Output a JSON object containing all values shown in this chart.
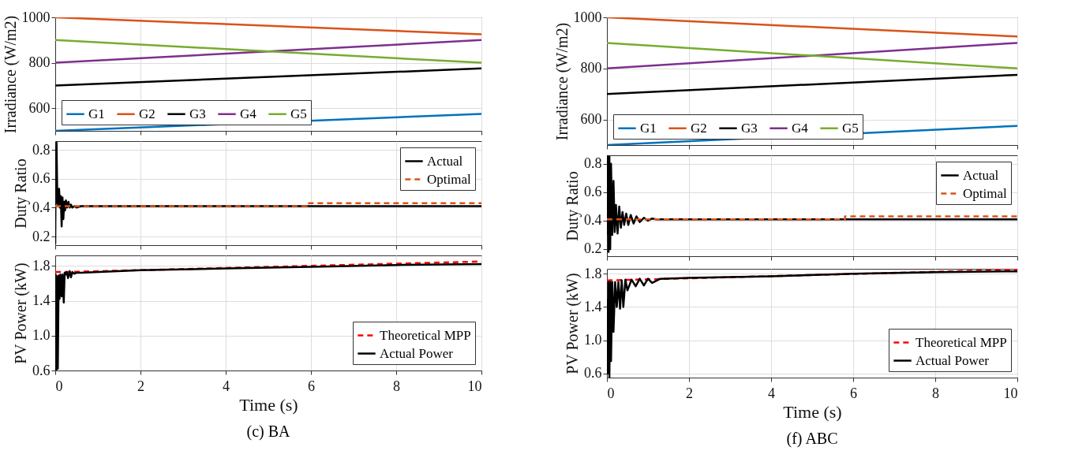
{
  "chart_data": [
    {
      "type": "line",
      "ylabel": "Irradiance (W/m2)",
      "xlim": [
        0,
        10
      ],
      "xticks": [
        0,
        2,
        4,
        6,
        8,
        10
      ],
      "ylim": [
        500,
        1000
      ],
      "yticks": [
        600,
        800,
        1000
      ],
      "grid": true,
      "tick_labels": "y",
      "legend": "bottom left",
      "line_style": "solid",
      "series": [
        {
          "name": "G1",
          "color": "#0072bd",
          "x": [
            0,
            10
          ],
          "values": [
            500,
            575
          ]
        },
        {
          "name": "G2",
          "color": "#d95319",
          "x": [
            0,
            10
          ],
          "values": [
            1000,
            925
          ]
        },
        {
          "name": "G3",
          "color": "#000000",
          "x": [
            0,
            10
          ],
          "values": [
            700,
            775
          ]
        },
        {
          "name": "G4",
          "color": "#7e2f8e",
          "x": [
            0,
            10
          ],
          "values": [
            800,
            900
          ]
        },
        {
          "name": "G5",
          "color": "#77ac30",
          "x": [
            0,
            10
          ],
          "values": [
            900,
            800
          ]
        }
      ]
    },
    {
      "type": "line",
      "ylabel": "Duty Ratio",
      "xlim": [
        0,
        10
      ],
      "xticks": [
        0,
        2,
        4,
        6,
        8,
        10
      ],
      "ylim": [
        0.14,
        0.86
      ],
      "yticks": [
        0.2,
        0.4,
        0.6,
        0.8
      ],
      "grid": true,
      "tick_labels": "y",
      "legend": "top right",
      "series": [
        {
          "name": "Actual",
          "color": "#000000",
          "line_style": "solid",
          "x": [
            0,
            0.01,
            0.03,
            0.05,
            0.07,
            0.09,
            0.11,
            0.13,
            0.15,
            0.17,
            0.19,
            0.21,
            0.23,
            0.25,
            0.28,
            0.31,
            0.34,
            0.37,
            0.4,
            0.45,
            0.5,
            0.6,
            10
          ],
          "values": [
            0.15,
            0.7,
            0.85,
            0.43,
            0.42,
            0.53,
            0.4,
            0.48,
            0.27,
            0.47,
            0.32,
            0.44,
            0.38,
            0.45,
            0.4,
            0.44,
            0.4,
            0.42,
            0.4,
            0.41,
            0.4,
            0.41,
            0.41
          ]
        },
        {
          "name": "Optimal",
          "color": "#d95319",
          "line_style": "dashed",
          "x": [
            0,
            5.9,
            5.9,
            10
          ],
          "values": [
            0.41,
            0.41,
            0.43,
            0.43
          ]
        }
      ]
    },
    {
      "type": "line",
      "ylabel": "PV Power (kW)",
      "xlabel": "Time (s)",
      "xlim": [
        0,
        10
      ],
      "xticks": [
        0,
        2,
        4,
        6,
        8,
        10
      ],
      "ylim": [
        0.6,
        1.92
      ],
      "yticks": [
        0.6,
        {
          "value": 1,
          "label": "1.0"
        },
        1.4,
        1.8
      ],
      "grid": true,
      "legend": "bottom right",
      "annotations": [
        "(c) BA"
      ],
      "series": [
        {
          "name": "Theoretical MPP",
          "color": "#ff0000",
          "line_style": "dashed",
          "x": [
            0,
            0.3,
            10
          ],
          "values": [
            1.73,
            1.73,
            1.85
          ]
        },
        {
          "name": "Actual Power",
          "color": "#000000",
          "line_style": "solid",
          "x": [
            0,
            0.01,
            0.02,
            0.04,
            0.06,
            0.08,
            0.1,
            0.12,
            0.15,
            0.17,
            0.2,
            0.22,
            0.24,
            0.27,
            0.3,
            0.34,
            0.37,
            0.4,
            0.44,
            0.5,
            0.6,
            2,
            4,
            6,
            8,
            10
          ],
          "values": [
            1.5,
            1.7,
            0.6,
            1.68,
            0.62,
            1.69,
            1.42,
            1.7,
            1.45,
            1.7,
            1.38,
            1.72,
            1.7,
            1.73,
            1.66,
            1.74,
            1.67,
            1.73,
            1.71,
            1.72,
            1.72,
            1.75,
            1.77,
            1.79,
            1.81,
            1.82
          ]
        }
      ]
    },
    {
      "type": "line",
      "ylabel": "Irradiance (W/m2)",
      "xlim": [
        0,
        10
      ],
      "xticks": [
        0,
        2,
        4,
        6,
        8,
        10
      ],
      "ylim": [
        500,
        1000
      ],
      "yticks": [
        600,
        800,
        1000
      ],
      "grid": true,
      "tick_labels": "y",
      "legend": "bottom left",
      "line_style": "solid",
      "series": [
        {
          "name": "G1",
          "color": "#0072bd",
          "x": [
            0,
            10
          ],
          "values": [
            500,
            575
          ]
        },
        {
          "name": "G2",
          "color": "#d95319",
          "x": [
            0,
            10
          ],
          "values": [
            1000,
            925
          ]
        },
        {
          "name": "G3",
          "color": "#000000",
          "x": [
            0,
            10
          ],
          "values": [
            700,
            775
          ]
        },
        {
          "name": "G4",
          "color": "#7e2f8e",
          "x": [
            0,
            10
          ],
          "values": [
            800,
            900
          ]
        },
        {
          "name": "G5",
          "color": "#77ac30",
          "x": [
            0,
            10
          ],
          "values": [
            900,
            800
          ]
        }
      ]
    },
    {
      "type": "line",
      "ylabel": "Duty Ratio",
      "xlim": [
        0,
        10
      ],
      "xticks": [
        0,
        2,
        4,
        6,
        8,
        10
      ],
      "ylim": [
        0.15,
        0.86
      ],
      "yticks": [
        0.2,
        0.4,
        0.6,
        0.8
      ],
      "grid": true,
      "tick_labels": "y",
      "legend": "top right",
      "series": [
        {
          "name": "Actual",
          "color": "#000000",
          "line_style": "solid",
          "x": [
            0,
            0.02,
            0.04,
            0.06,
            0.08,
            0.1,
            0.13,
            0.16,
            0.19,
            0.22,
            0.26,
            0.3,
            0.34,
            0.38,
            0.42,
            0.47,
            0.52,
            0.58,
            0.65,
            0.72,
            0.8,
            0.9,
            1.0,
            1.1,
            1.2,
            10
          ],
          "values": [
            0.3,
            0.86,
            0.18,
            0.85,
            0.2,
            0.8,
            0.3,
            0.68,
            0.32,
            0.51,
            0.31,
            0.5,
            0.35,
            0.46,
            0.37,
            0.45,
            0.37,
            0.44,
            0.38,
            0.43,
            0.39,
            0.42,
            0.4,
            0.415,
            0.41,
            0.41
          ]
        },
        {
          "name": "Optimal",
          "color": "#d95319",
          "line_style": "dashed",
          "x": [
            0,
            5.8,
            5.8,
            10
          ],
          "values": [
            0.41,
            0.41,
            0.43,
            0.43
          ]
        }
      ]
    },
    {
      "type": "line",
      "ylabel": "PV Power (kW)",
      "xlabel": "Time (s)",
      "xlim": [
        0,
        10
      ],
      "xticks": [
        0,
        2,
        4,
        6,
        8,
        10
      ],
      "ylim": [
        0.55,
        1.86
      ],
      "yticks": [
        0.6,
        {
          "value": 1,
          "label": "1.0"
        },
        1.4,
        1.8
      ],
      "grid": true,
      "legend": "bottom right",
      "annotations": [
        "(f) ABC"
      ],
      "series": [
        {
          "name": "Theoretical MPP",
          "color": "#ff0000",
          "line_style": "dashed",
          "x": [
            0,
            10
          ],
          "values": [
            1.72,
            1.85
          ]
        },
        {
          "name": "Actual Power",
          "color": "#000000",
          "line_style": "solid",
          "x": [
            0,
            0.02,
            0.04,
            0.06,
            0.08,
            0.1,
            0.13,
            0.16,
            0.2,
            0.24,
            0.28,
            0.32,
            0.36,
            0.4,
            0.45,
            0.5,
            0.6,
            0.7,
            0.8,
            0.9,
            1.0,
            1.1,
            1.3,
            2,
            4,
            6,
            8,
            10
          ],
          "values": [
            1.5,
            0.6,
            1.7,
            0.55,
            1.7,
            0.75,
            1.7,
            1.1,
            1.7,
            1.4,
            1.7,
            1.38,
            1.72,
            1.4,
            1.73,
            1.6,
            1.73,
            1.65,
            1.74,
            1.66,
            1.74,
            1.69,
            1.74,
            1.75,
            1.77,
            1.8,
            1.82,
            1.83
          ]
        }
      ]
    }
  ]
}
